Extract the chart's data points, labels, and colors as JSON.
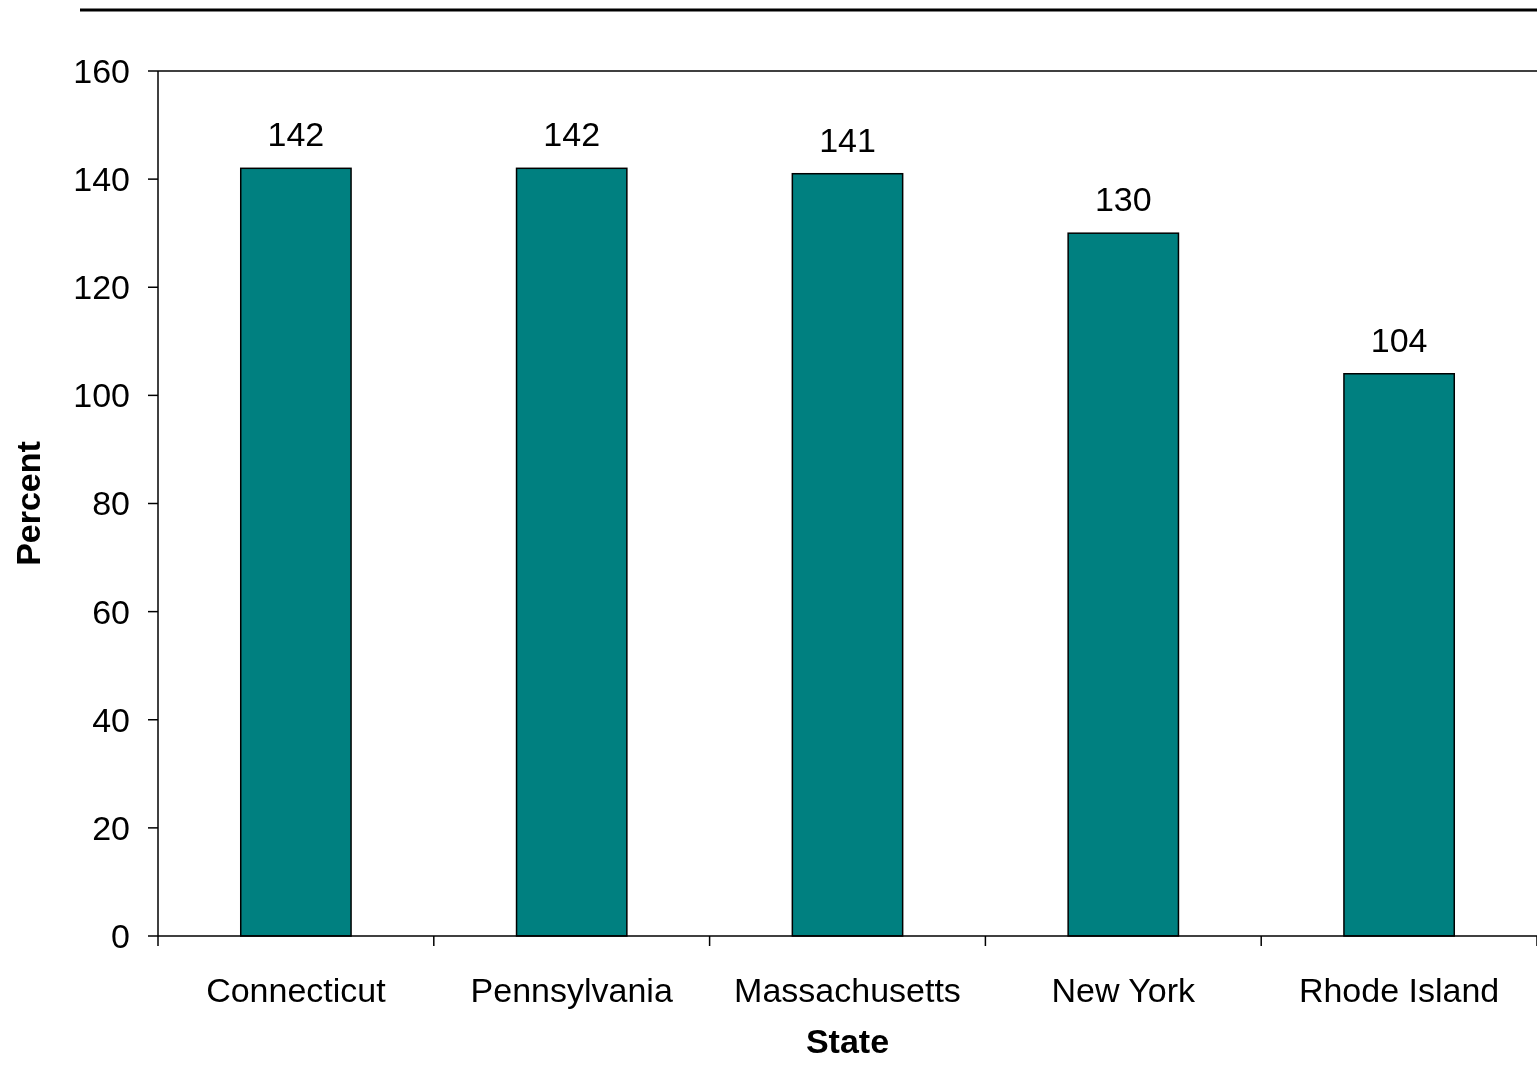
{
  "chart_data": {
    "type": "bar",
    "xlabel": "State",
    "ylabel": "Percent",
    "categories": [
      "Connecticut",
      "Pennsylvania",
      "Massachusetts",
      "New York",
      "Rhode Island"
    ],
    "values": [
      142,
      142,
      141,
      130,
      104
    ],
    "color": "#008080",
    "ylim": [
      0,
      160
    ],
    "yticks": [
      0,
      20,
      40,
      60,
      80,
      100,
      120,
      140,
      160
    ],
    "data_labels": true,
    "grid": false
  }
}
